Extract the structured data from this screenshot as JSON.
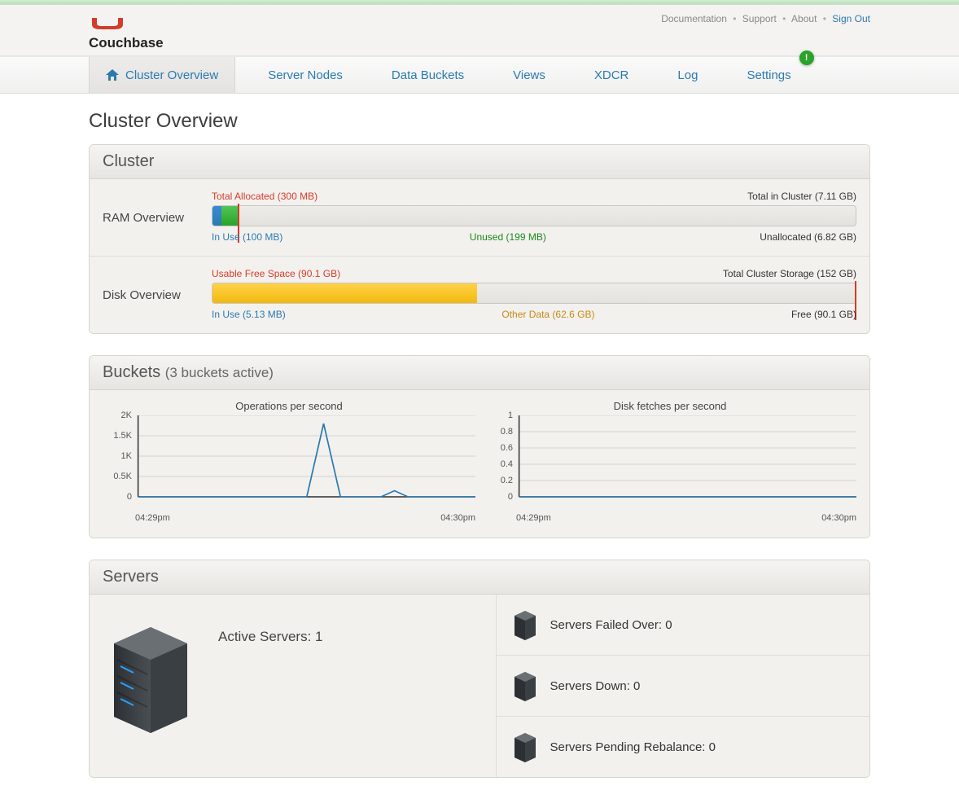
{
  "brand": {
    "name": "Couchbase",
    "logo_color": "#d43b2b"
  },
  "top_links": {
    "documentation": "Documentation",
    "support": "Support",
    "about": "About",
    "signout": "Sign Out"
  },
  "nav": {
    "items": [
      {
        "label": "Cluster Overview",
        "active": true,
        "icon": "home"
      },
      {
        "label": "Server Nodes"
      },
      {
        "label": "Data Buckets"
      },
      {
        "label": "Views"
      },
      {
        "label": "XDCR"
      },
      {
        "label": "Log"
      },
      {
        "label": "Settings",
        "alert": "!"
      }
    ]
  },
  "page_title": "Cluster Overview",
  "cluster": {
    "header": "Cluster",
    "ram": {
      "label": "RAM Overview",
      "top_left": "Total Allocated (300 MB)",
      "top_right": "Total in Cluster (7.11 GB)",
      "bottom_left": "In Use (100 MB)",
      "bottom_mid": "Unused (199 MB)",
      "bottom_right": "Unallocated (6.82 GB)",
      "segments": [
        {
          "start_pct": 0.0,
          "width_pct": 1.4,
          "color": "linear-gradient(#3a8ad6,#2a7ab0)"
        },
        {
          "start_pct": 1.4,
          "width_pct": 2.7,
          "color": "linear-gradient(#54c454,#29a329)"
        }
      ],
      "divider_pct": 4.1,
      "mid_label_pct": 40
    },
    "disk": {
      "label": "Disk Overview",
      "top_left": "Usable Free Space (90.1 GB)",
      "top_right": "Total Cluster Storage (152 GB)",
      "bottom_left": "In Use (5.13 MB)",
      "bottom_mid": "Other Data (62.6 GB)",
      "bottom_right": "Free (90.1 GB)",
      "segments": [
        {
          "start_pct": 0.0,
          "width_pct": 41.2,
          "color": "linear-gradient(#ffd24a,#f2b90e)"
        }
      ],
      "divider_pct": 99.7,
      "mid_label_pct": 45
    }
  },
  "buckets": {
    "header": "Buckets",
    "subtitle": "(3 buckets active)",
    "chart_ops": {
      "title": "Operations per second",
      "yticks": [
        "2K",
        "1.5K",
        "1K",
        "0.5K",
        "0"
      ],
      "ymax": 2000,
      "line_color": "#2a7ab0",
      "grid_color": "#d6d4d1",
      "xstart": "04:29pm",
      "xend": "04:30pm",
      "points": [
        [
          0,
          0
        ],
        [
          0.5,
          0
        ],
        [
          0.55,
          1800
        ],
        [
          0.6,
          0
        ],
        [
          0.72,
          0
        ],
        [
          0.76,
          150
        ],
        [
          0.8,
          0
        ],
        [
          1.0,
          0
        ]
      ]
    },
    "chart_disk": {
      "title": "Disk fetches per second",
      "yticks": [
        "1",
        "0.8",
        "0.6",
        "0.4",
        "0.2",
        "0"
      ],
      "ymax": 1,
      "line_color": "#2a7ab0",
      "grid_color": "#d6d4d1",
      "xstart": "04:29pm",
      "xend": "04:30pm",
      "points": [
        [
          0,
          0
        ],
        [
          1.0,
          0
        ]
      ]
    }
  },
  "servers": {
    "header": "Servers",
    "active_label": "Active Servers: 1",
    "rows": [
      {
        "label": "Servers Failed Over: 0"
      },
      {
        "label": "Servers Down: 0"
      },
      {
        "label": "Servers Pending Rebalance: 0"
      }
    ]
  }
}
